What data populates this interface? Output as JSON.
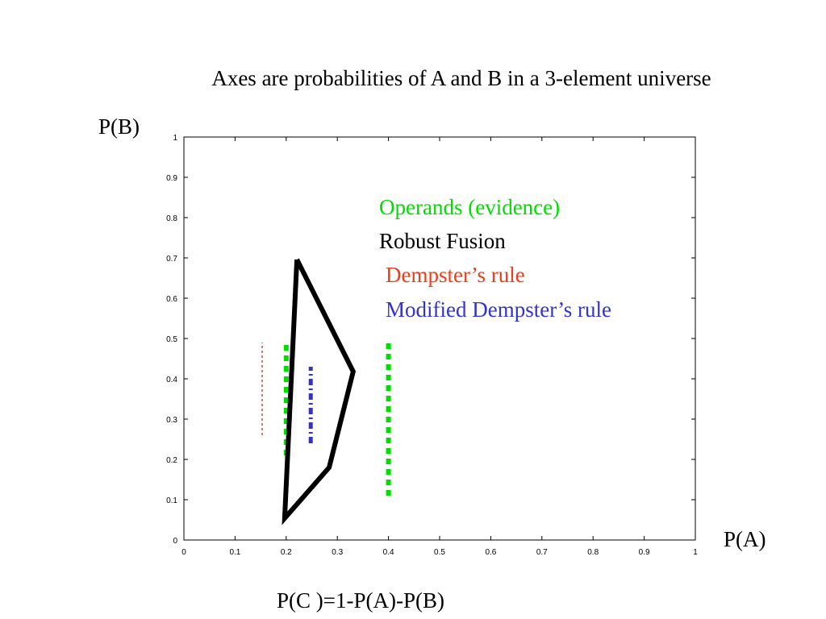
{
  "chart_data": {
    "type": "line",
    "title": "Axes are probabilities of A and B in a 3-element universe",
    "ylabel": "P(B)",
    "xlabel": "P(A)",
    "annotation": "P(C )=1-P(A)-P(B)",
    "xlim": [
      0,
      1
    ],
    "ylim": [
      0,
      1
    ],
    "xticks": [
      0,
      0.1,
      0.2,
      0.3,
      0.4,
      0.5,
      0.6,
      0.7,
      0.8,
      0.9,
      1
    ],
    "yticks": [
      0,
      0.1,
      0.2,
      0.3,
      0.4,
      0.5,
      0.6,
      0.7,
      0.8,
      0.9,
      1
    ],
    "series": [
      {
        "name": "Operands (evidence)",
        "color": "#00dd00",
        "linestyle": "dotted",
        "x": [
          0.2,
          0.2,
          null,
          0.4,
          0.4
        ],
        "values": [
          0.21,
          0.49,
          null,
          0.11,
          0.49
        ]
      },
      {
        "name": "Robust Fusion",
        "color": "#000000",
        "linestyle": "solid",
        "x": [
          0.221,
          0.331,
          0.284,
          0.197,
          0.221
        ],
        "values": [
          0.696,
          0.418,
          0.18,
          0.054,
          0.696
        ]
      },
      {
        "name": "Dempster’s rule",
        "color": "#e8401c",
        "linestyle": "dashed",
        "x": [
          0.153,
          0.153
        ],
        "values": [
          0.26,
          0.49
        ]
      },
      {
        "name": "Modified Dempster’s rule",
        "color": "#3333cc",
        "linestyle": "dashdot",
        "x": [
          0.248,
          0.248
        ],
        "values": [
          0.24,
          0.43
        ]
      }
    ]
  }
}
